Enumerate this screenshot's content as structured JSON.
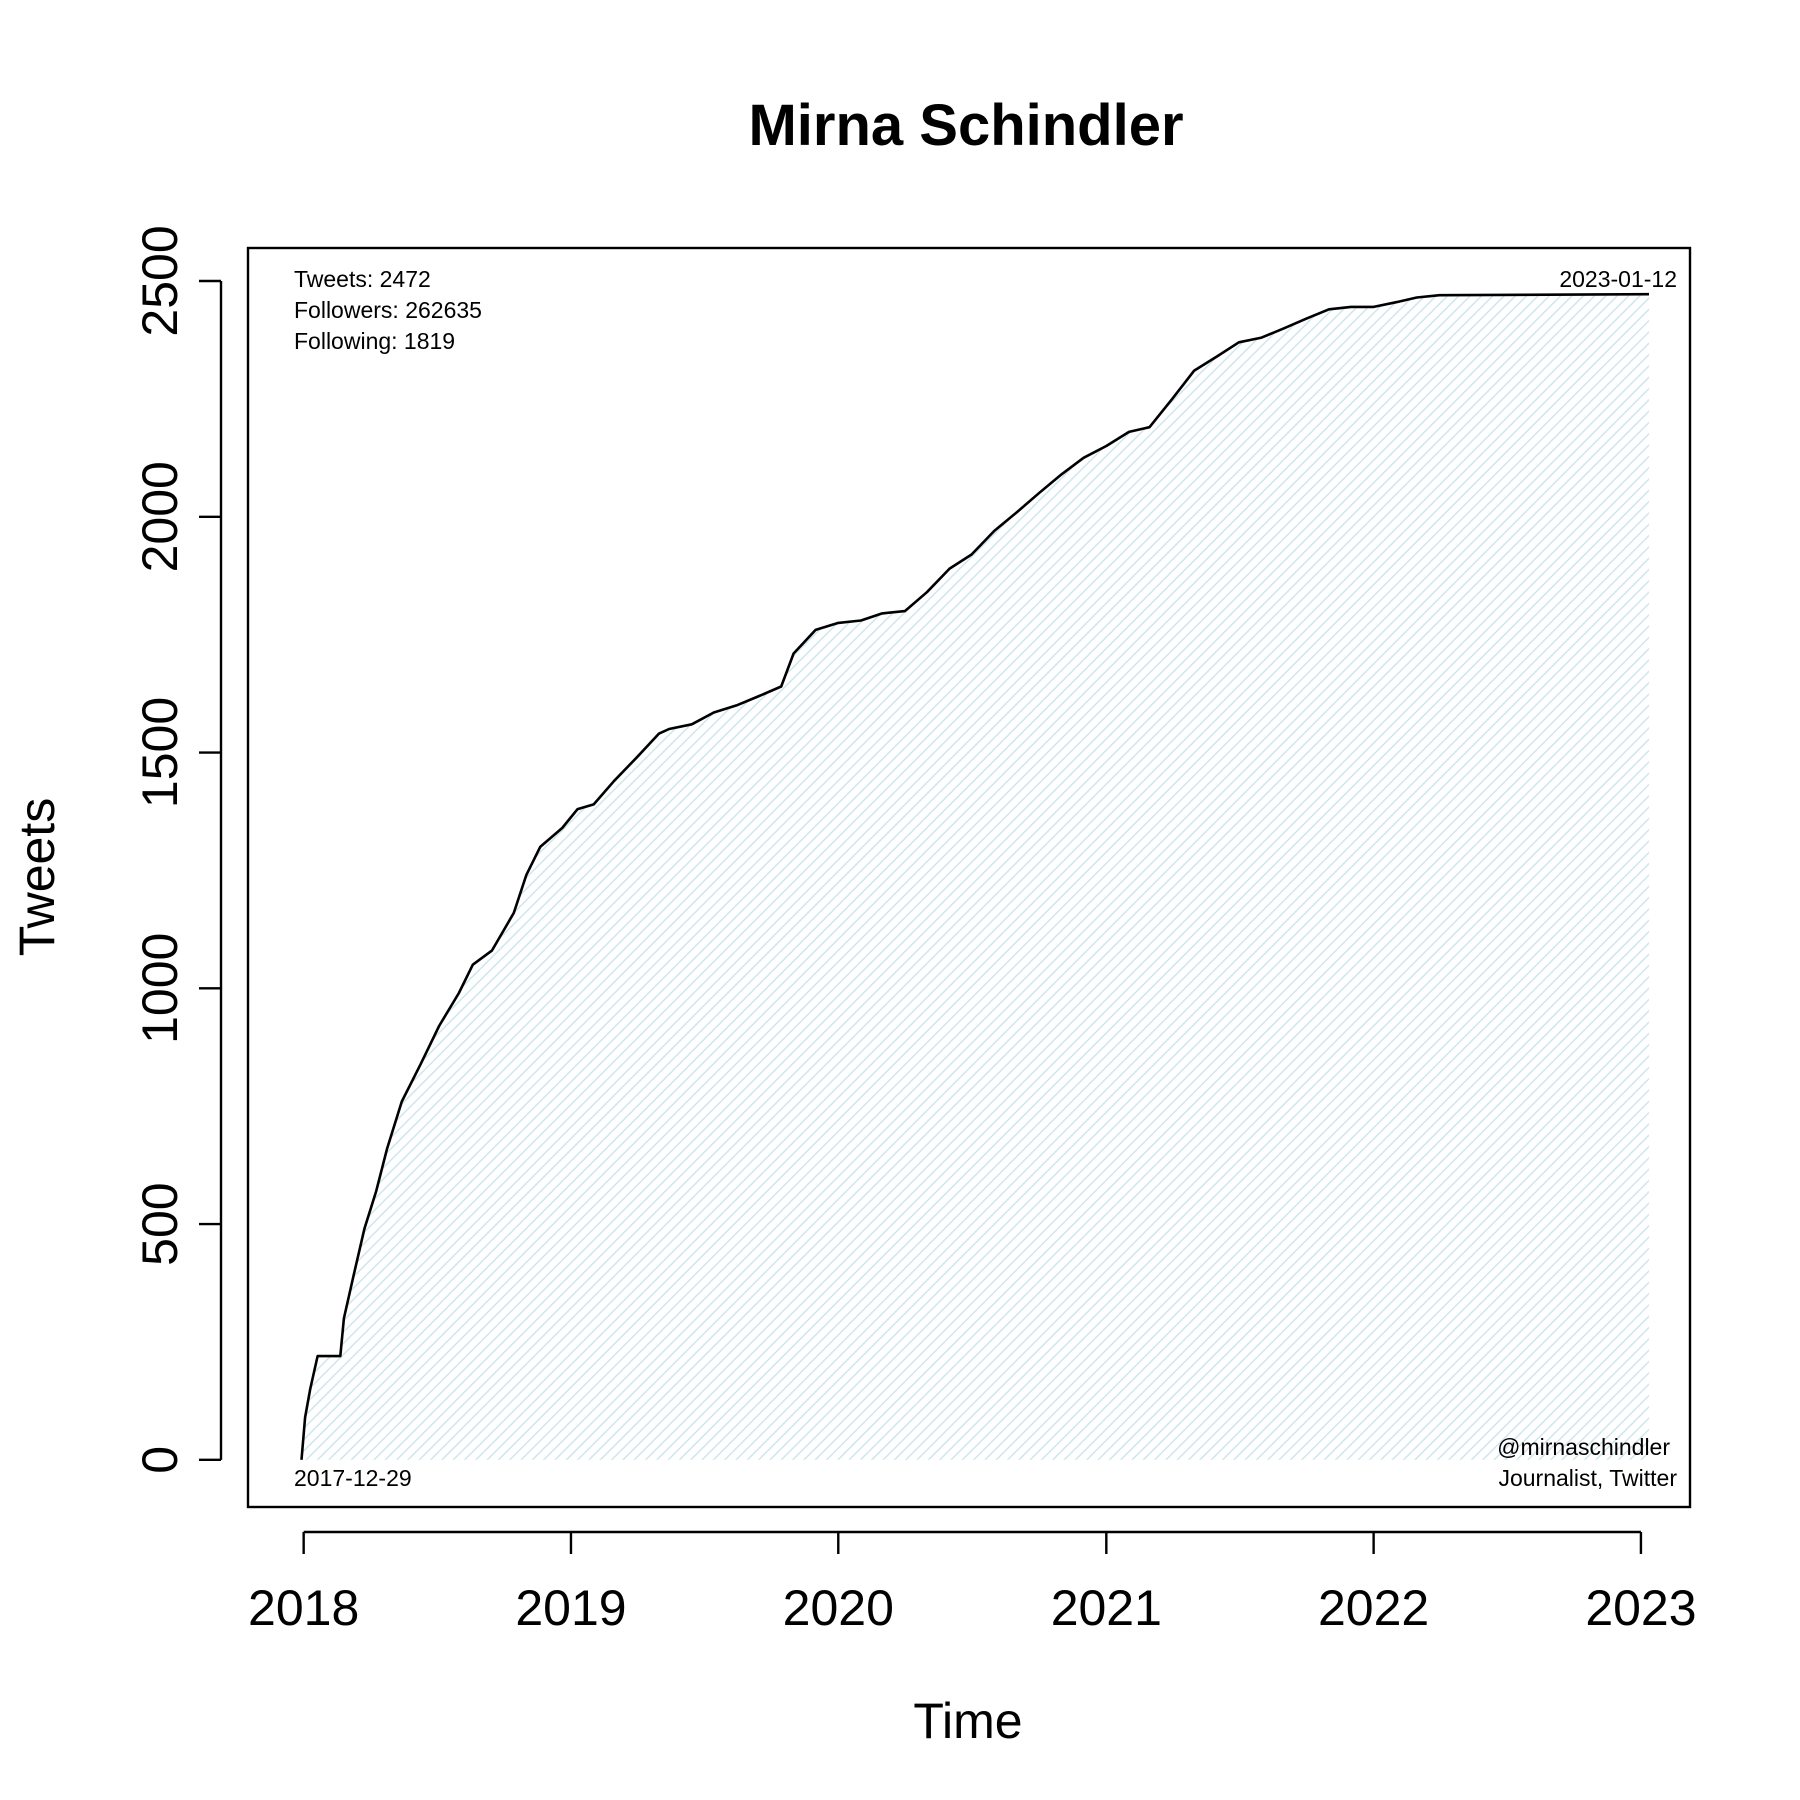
{
  "chart_data": {
    "type": "area",
    "title": "Mirna Schindler",
    "xlabel": "Time",
    "ylabel": "Tweets",
    "xlim": [
      "2017-10-17",
      "2023-03-09"
    ],
    "ylim": [
      -100,
      2570
    ],
    "x_ticks": [
      "2018-01-01",
      "2019-01-01",
      "2020-01-01",
      "2021-01-01",
      "2022-01-01",
      "2023-01-01"
    ],
    "x_tick_labels": [
      "2018",
      "2019",
      "2020",
      "2021",
      "2022",
      "2023"
    ],
    "y_ticks": [
      0,
      500,
      1000,
      1500,
      2000,
      2500
    ],
    "y_tick_labels": [
      "0",
      "500",
      "1000",
      "1500",
      "2000",
      "2500"
    ],
    "grid": false,
    "fill_color": "#e6f3f6",
    "line_color": "#000000",
    "series": [
      {
        "x": [
          "2017-12-29",
          "2018-01-03",
          "2018-01-10",
          "2018-01-20",
          "2018-02-01",
          "2018-02-20",
          "2018-02-25",
          "2018-03-10",
          "2018-03-25",
          "2018-04-10",
          "2018-04-25",
          "2018-05-15",
          "2018-06-10",
          "2018-07-05",
          "2018-08-01",
          "2018-08-20",
          "2018-09-15",
          "2018-10-15",
          "2018-11-01",
          "2018-11-20",
          "2018-12-20",
          "2019-01-10",
          "2019-02-01",
          "2019-03-01",
          "2019-04-01",
          "2019-05-01",
          "2019-05-15",
          "2019-06-15",
          "2019-07-15",
          "2019-08-15",
          "2019-09-15",
          "2019-10-15",
          "2019-11-01",
          "2019-12-01",
          "2020-01-01",
          "2020-02-01",
          "2020-03-01",
          "2020-04-01",
          "2020-05-01",
          "2020-06-01",
          "2020-07-01",
          "2020-08-01",
          "2020-09-01",
          "2020-10-01",
          "2020-11-01",
          "2020-12-01",
          "2021-01-01",
          "2021-02-01",
          "2021-03-01",
          "2021-04-01",
          "2021-05-01",
          "2021-06-01",
          "2021-07-01",
          "2021-08-01",
          "2021-09-01",
          "2021-10-01",
          "2021-11-01",
          "2021-12-01",
          "2022-01-01",
          "2022-02-01",
          "2022-03-01",
          "2022-04-01",
          "2023-01-12"
        ],
        "y": [
          0,
          90,
          150,
          220,
          220,
          220,
          300,
          390,
          490,
          570,
          660,
          760,
          840,
          920,
          990,
          1050,
          1080,
          1160,
          1240,
          1300,
          1340,
          1380,
          1390,
          1440,
          1490,
          1540,
          1550,
          1560,
          1585,
          1600,
          1620,
          1640,
          1710,
          1760,
          1775,
          1780,
          1795,
          1800,
          1840,
          1890,
          1920,
          1970,
          2010,
          2050,
          2090,
          2125,
          2150,
          2180,
          2190,
          2250,
          2310,
          2340,
          2370,
          2380,
          2400,
          2420,
          2440,
          2445,
          2445,
          2455,
          2465,
          2470,
          2472
        ]
      }
    ]
  },
  "annotations": {
    "tweets": "Tweets: 2472",
    "followers": "Followers: 262635",
    "following": "Following: 1819",
    "end_date": "2023-01-12",
    "start_date": "2017-12-29",
    "handle": "@mirnaschindler",
    "description": "Journalist, Twitter"
  }
}
